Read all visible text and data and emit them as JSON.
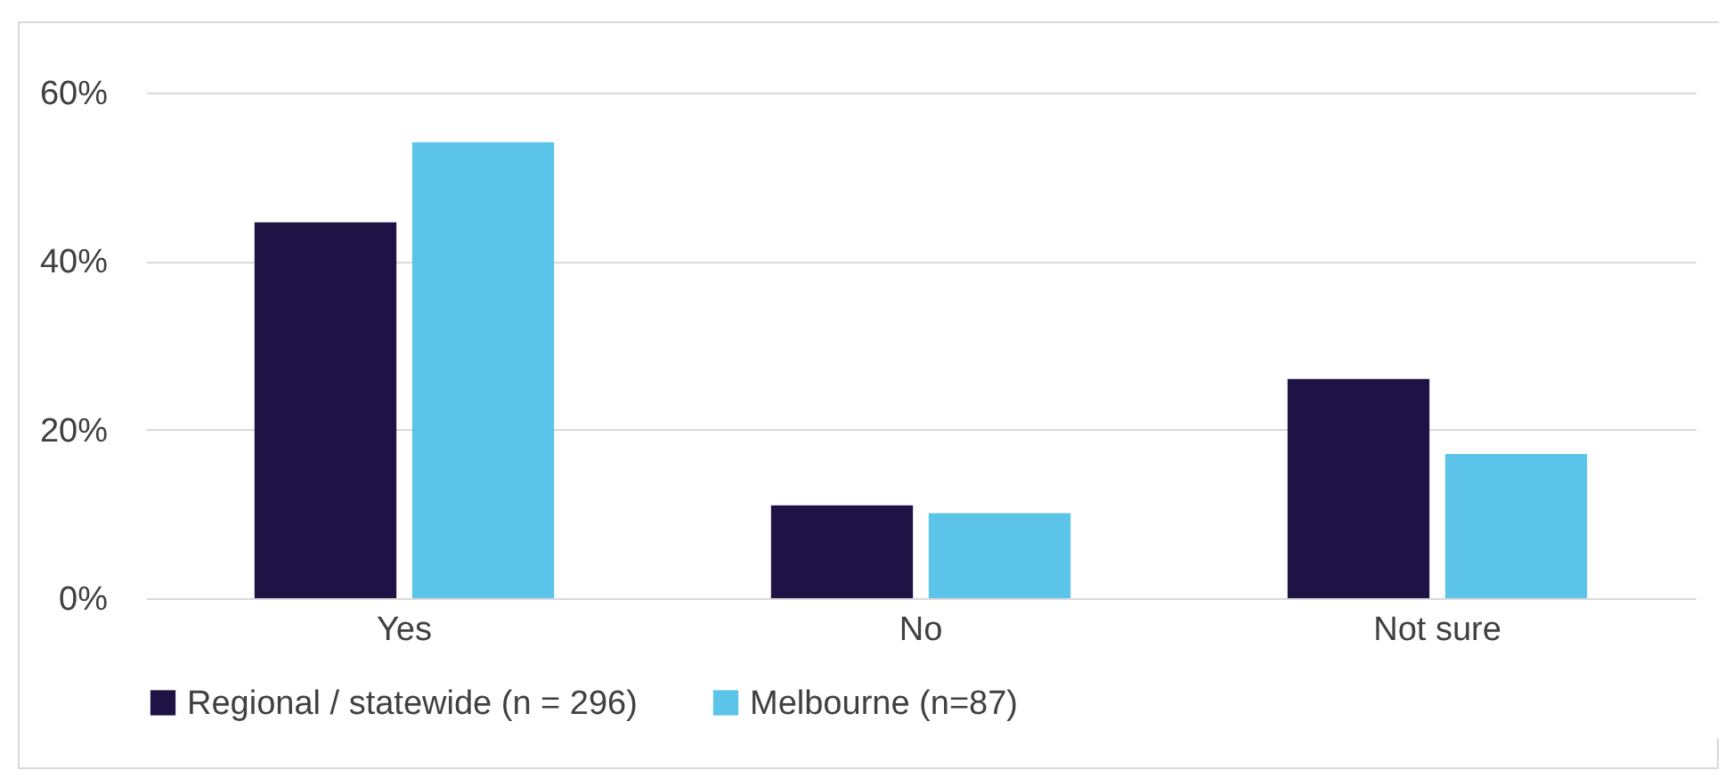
{
  "chart_data": {
    "type": "bar",
    "categories": [
      "Yes",
      "No",
      "Not sure"
    ],
    "series": [
      {
        "name": "Regional / statewide (n = 296)",
        "color": "#1f1245",
        "values": [
          44.6,
          11.0,
          26.0
        ]
      },
      {
        "name": "Melbourne (n=87)",
        "color": "#5bc4e8",
        "values": [
          54.1,
          10.1,
          17.1
        ]
      }
    ],
    "ylim": [
      0,
      60
    ],
    "yticks": [
      {
        "value": 0,
        "label": "0%"
      },
      {
        "value": 20,
        "label": "20%"
      },
      {
        "value": 40,
        "label": "40%"
      },
      {
        "value": 60,
        "label": "60%"
      }
    ],
    "grid": "y",
    "legend": "bottom"
  }
}
